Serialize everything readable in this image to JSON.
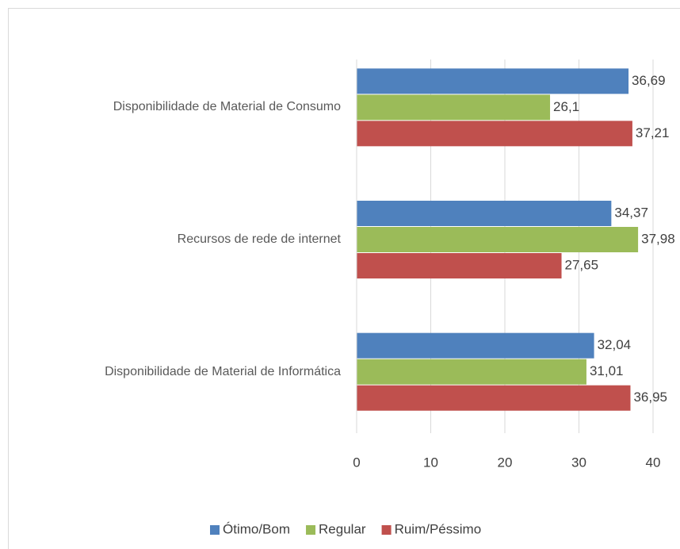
{
  "chart_data": {
    "type": "hbar",
    "categories": [
      "Disponibilidade de Material de Consumo",
      "Recursos de rede de internet",
      "Disponibilidade de Material de Informática"
    ],
    "series": [
      {
        "name": "Ótimo/Bom",
        "color": "#4f81bd",
        "values": [
          36.69,
          34.37,
          32.04
        ],
        "value_labels": [
          "36,69",
          "34,37",
          "32,04"
        ]
      },
      {
        "name": "Regular",
        "color": "#9bbb59",
        "values": [
          26.1,
          37.98,
          31.01
        ],
        "value_labels": [
          "26,1",
          "37,98",
          "31,01"
        ]
      },
      {
        "name": "Ruim/Péssimo",
        "color": "#c0504d",
        "values": [
          37.21,
          27.65,
          36.95
        ],
        "value_labels": [
          "37,21",
          "27,65",
          "36,95"
        ]
      }
    ],
    "xlim": [
      0,
      40
    ],
    "xticks": [
      0,
      10,
      20,
      30,
      40
    ],
    "grid": true,
    "legend": "bottom"
  }
}
